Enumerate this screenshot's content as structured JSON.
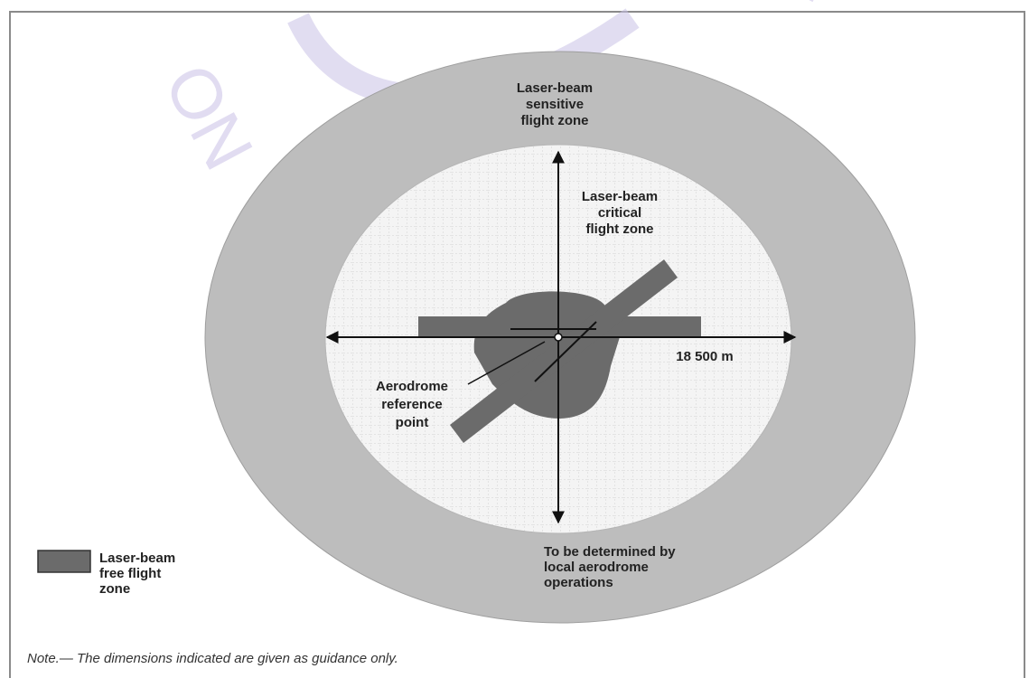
{
  "diagram": {
    "labels": {
      "sensitive_zone": [
        "Laser-beam",
        "sensitive",
        "flight zone"
      ],
      "critical_zone": [
        "Laser-beam",
        "critical",
        "flight zone"
      ],
      "distance": "18 500 m",
      "arp": [
        "Aerodrome",
        "reference",
        "point"
      ],
      "determined": [
        "To be determined by",
        "local aerodrome",
        "operations"
      ]
    },
    "legend": {
      "free_zone": [
        "Laser-beam",
        "free flight",
        "zone"
      ]
    },
    "note": "Note.— The dimensions indicated are given as guidance only.",
    "watermark": {
      "left": "ON",
      "right": "TY"
    },
    "colors": {
      "sensitive_ring": "#bdbdbd",
      "critical_fill": "#f2f2f2",
      "free_zone": "#6b6b6b",
      "watermark": "#c9c1e6",
      "arrows": "#111111"
    }
  }
}
